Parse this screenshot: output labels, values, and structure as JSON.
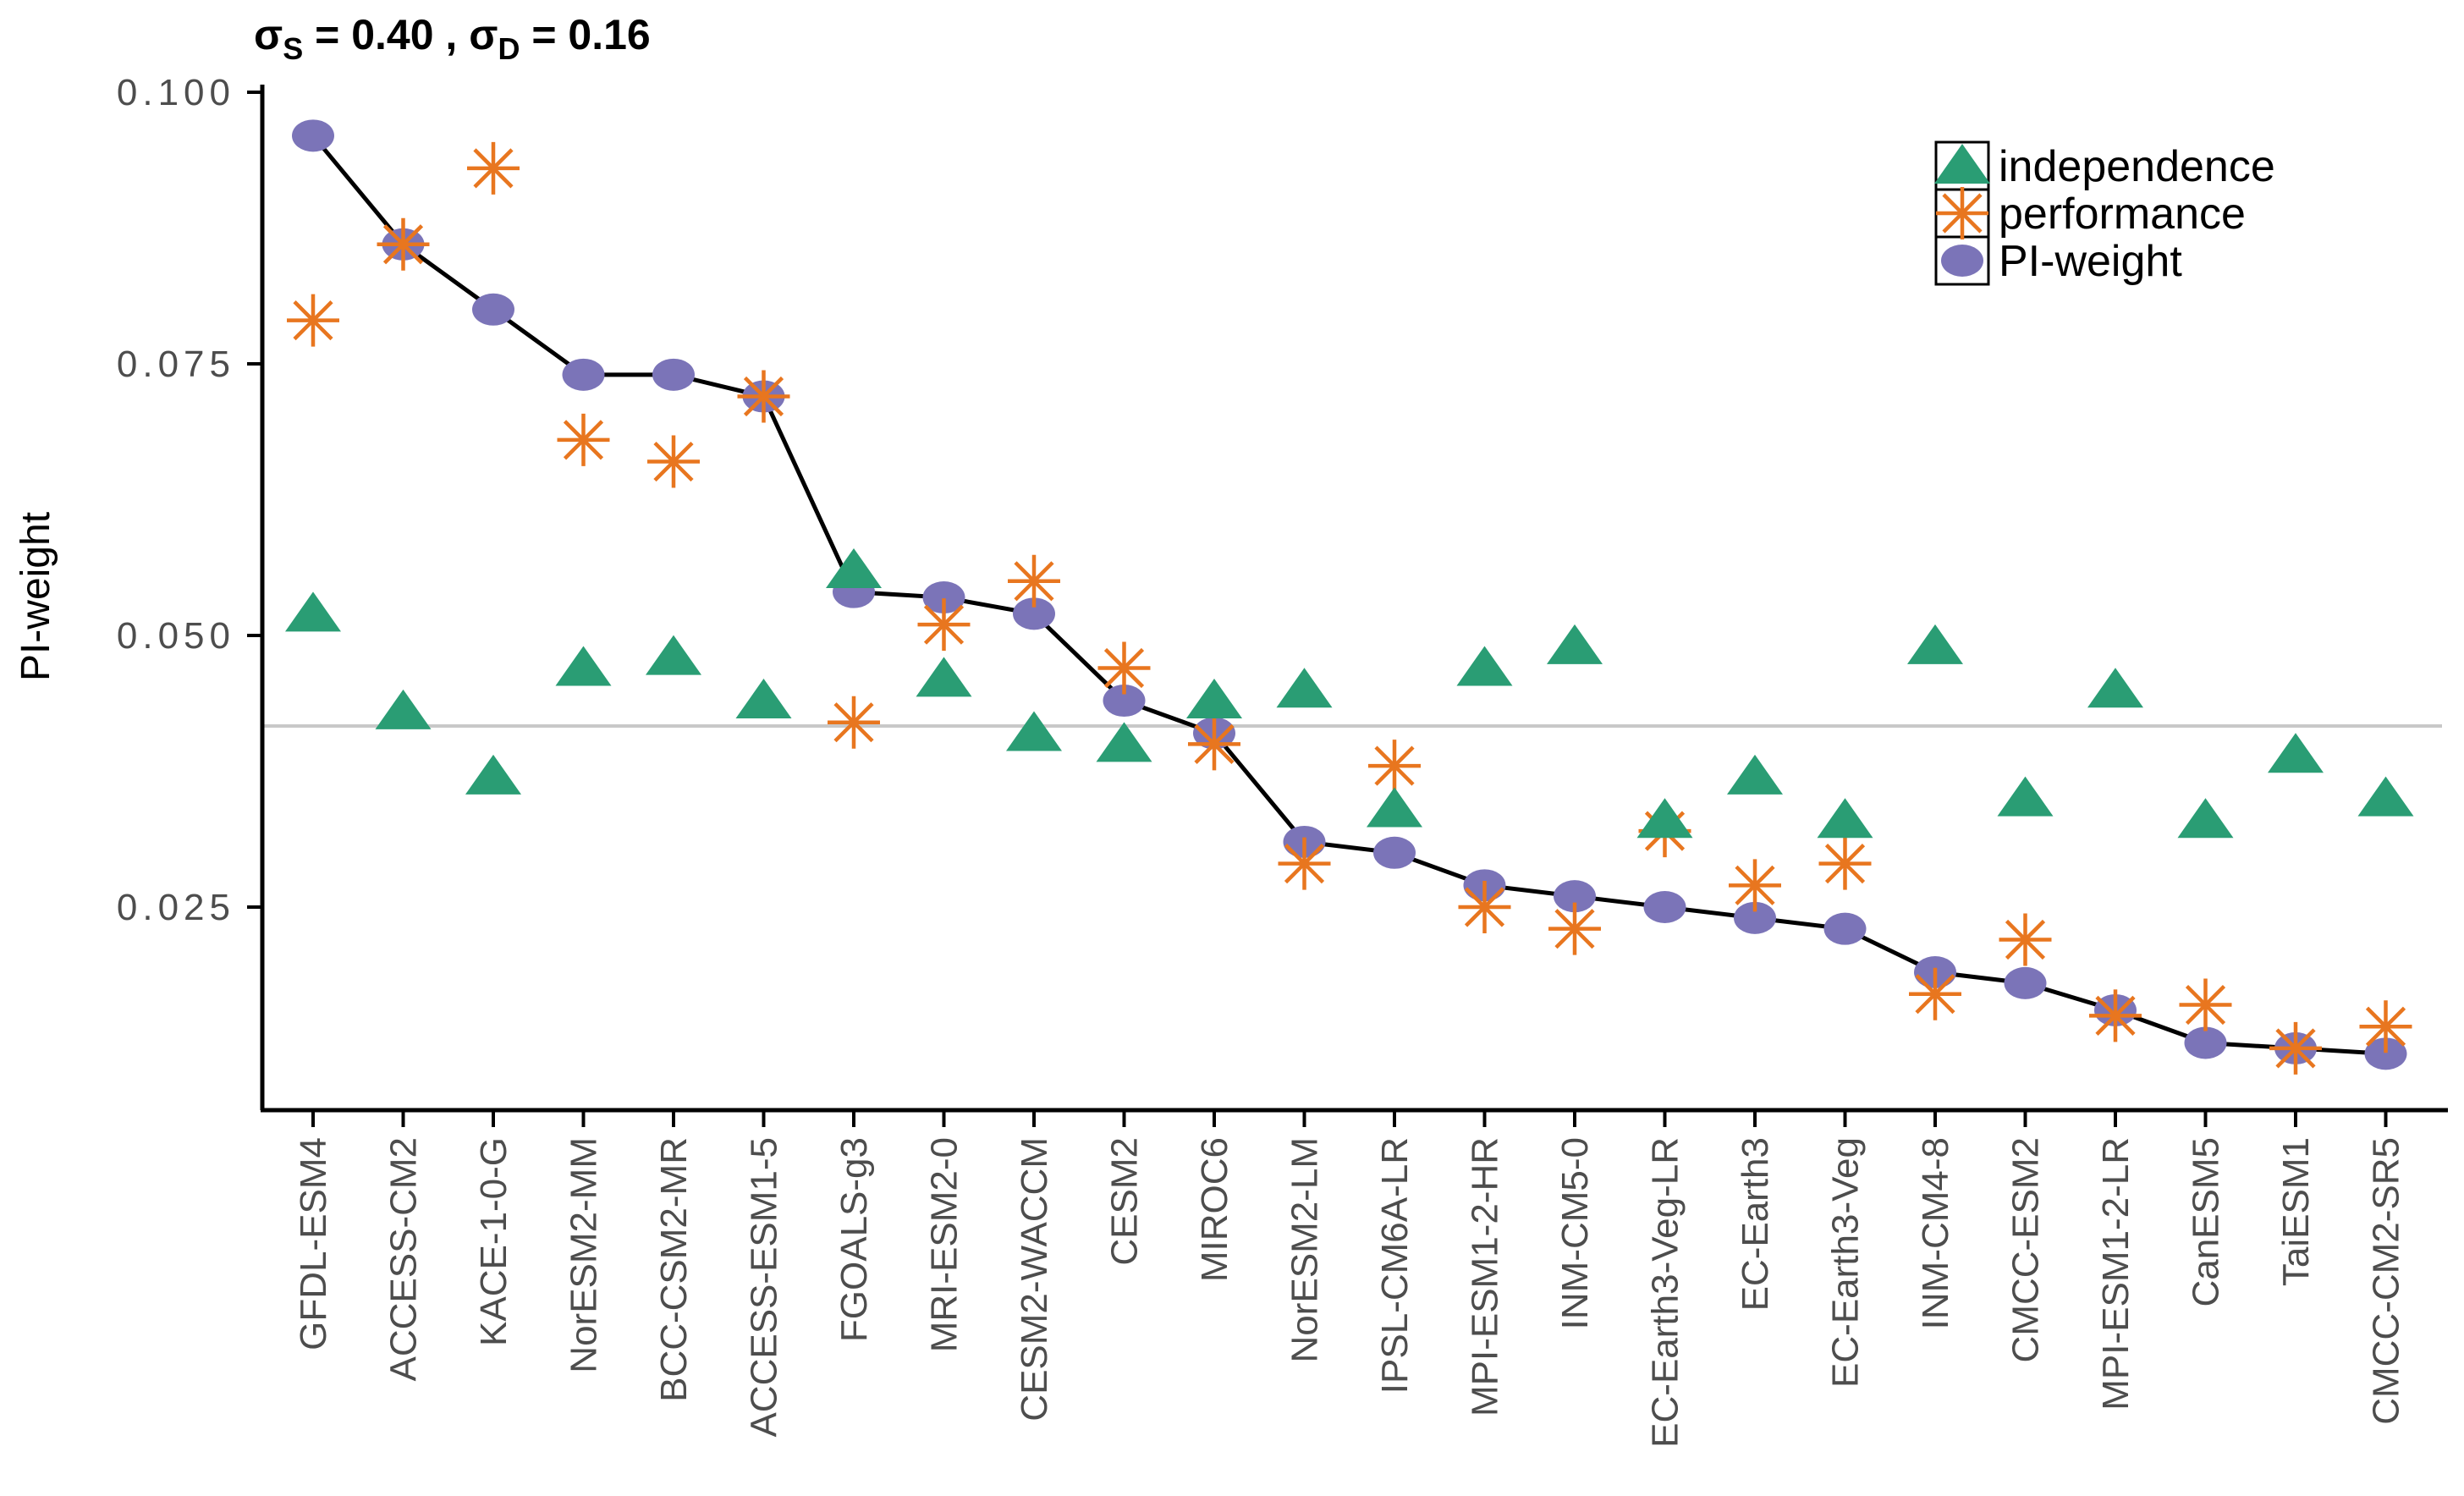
{
  "chart_data": {
    "type": "scatter",
    "title": "σS = 0.40 , σD = 0.16",
    "title_parts": {
      "sigma_s": "σ",
      "sub_s": "S",
      "value_s": " = 0.40 , ",
      "sigma_d": "σ",
      "sub_d": "D",
      "value_d": " = 0.16"
    },
    "ylabel": "PI-weight",
    "ylim": [
      0.006,
      0.1005
    ],
    "grid": false,
    "legend_position": "top-right",
    "y_ticks": [
      {
        "value": 0.025,
        "label": "0.025"
      },
      {
        "value": 0.05,
        "label": "0.050"
      },
      {
        "value": 0.075,
        "label": "0.075"
      },
      {
        "value": 0.1,
        "label": "0.100"
      }
    ],
    "reference_line": {
      "value": 0.04167,
      "color": "#c8c8c8"
    },
    "axis_color": "#000000",
    "tick_label_color": "#4d4d4d",
    "categories": [
      "GFDL-ESM4",
      "ACCESS-CM2",
      "KACE-1-0-G",
      "NorESM2-MM",
      "BCC-CSM2-MR",
      "ACCESS-ESM1-5",
      "FGOALS-g3",
      "MRI-ESM2-0",
      "CESM2-WACCM",
      "CESM2",
      "MIROC6",
      "NorESM2-LM",
      "IPSL-CM6A-LR",
      "MPI-ESM1-2-HR",
      "INM-CM5-0",
      "EC-Earth3-Veg-LR",
      "EC-Earth3",
      "EC-Earth3-Veg",
      "INM-CM4-8",
      "CMCC-ESM2",
      "MPI-ESM1-2-LR",
      "CanESM5",
      "TaiESM1",
      "CMCC-CM2-SR5"
    ],
    "series": [
      {
        "name": "independence",
        "marker": "triangle",
        "color": "#2a9d74",
        "values": [
          0.052,
          0.043,
          0.037,
          0.047,
          0.048,
          0.044,
          0.056,
          0.046,
          0.041,
          0.04,
          0.044,
          0.045,
          0.034,
          0.047,
          0.049,
          0.033,
          0.037,
          0.033,
          0.049,
          0.035,
          0.045,
          0.033,
          0.039,
          0.035
        ]
      },
      {
        "name": "performance",
        "marker": "asterisk",
        "color": "#e8761f",
        "values": [
          0.079,
          0.086,
          0.093,
          0.068,
          0.066,
          0.072,
          0.042,
          0.051,
          0.055,
          0.047,
          0.04,
          0.029,
          0.038,
          0.025,
          0.023,
          0.032,
          0.027,
          0.029,
          0.017,
          0.022,
          0.015,
          0.016,
          0.012,
          0.014
        ]
      },
      {
        "name": "PI-weight",
        "marker": "circle",
        "color": "#7b74b8",
        "line": true,
        "line_color": "#000000",
        "values": [
          0.096,
          0.086,
          0.08,
          0.074,
          0.074,
          0.072,
          0.054,
          0.0535,
          0.052,
          0.044,
          0.041,
          0.031,
          0.03,
          0.027,
          0.026,
          0.025,
          0.024,
          0.023,
          0.019,
          0.018,
          0.0155,
          0.0125,
          0.012,
          0.0115
        ]
      }
    ]
  }
}
